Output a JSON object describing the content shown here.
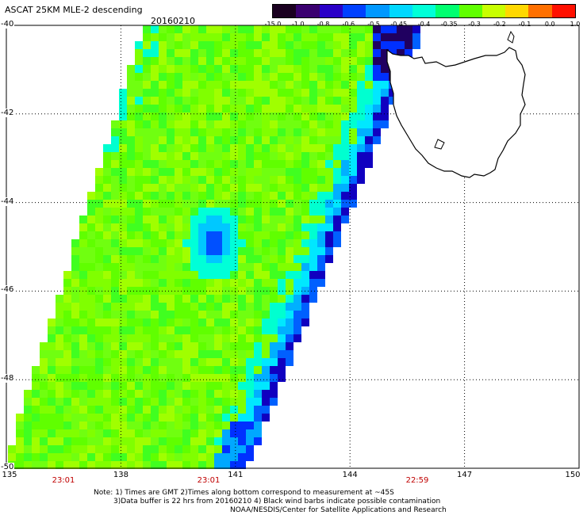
{
  "header": {
    "title": "ASCAT 25KM MLE-2 descending",
    "date": "20160210"
  },
  "colorbar": {
    "labels": [
      "-15.0",
      "-1.0",
      "-0.8",
      "-0.6",
      "-0.5",
      "-0.45",
      "-0.4",
      "-0.35",
      "-0.3",
      "-0.2",
      "-0.1",
      "0.0",
      "1.0"
    ],
    "colors": [
      "#1a0020",
      "#3a0070",
      "#2a00c8",
      "#0040ff",
      "#0098ff",
      "#00d8ff",
      "#00ffd8",
      "#00ff70",
      "#60ff00",
      "#c8ff00",
      "#ffd800",
      "#ff7000",
      "#ff1000"
    ]
  },
  "map": {
    "latitude_labels": [
      "-40",
      "-42",
      "-44",
      "-46",
      "-48",
      "-50"
    ],
    "longitude_labels": [
      "135",
      "138",
      "141",
      "144",
      "147",
      "150"
    ],
    "swath_times": [
      "23:01",
      "23:01",
      "22:59"
    ],
    "landmass": "Tasmania"
  },
  "footer": {
    "note_line1": "Note: 1) Times are GMT 2)Times along bottom correspond to measurement at ~45S",
    "note_line2": "3)Data buffer is 22 hrs from 20160210 4) Black wind barbs indicate possible contamination",
    "credit": "NOAA/NESDIS/Center for Satellite Applications and Research"
  }
}
